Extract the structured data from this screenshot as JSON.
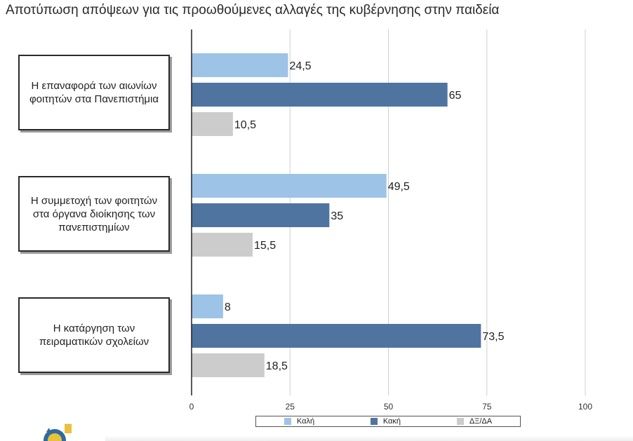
{
  "title": "Αποτύπωση απόψεων για τις προωθούμενες αλλαγές της κυβέρνησης στην παιδεία",
  "colors": {
    "kali": "#9DC3E6",
    "kaki": "#4F74A0",
    "dxda": "#CCCCCC",
    "axis": "#222222",
    "gridline": "#d0d0d0"
  },
  "logo": {
    "icon": "emblem-icon"
  },
  "chart_data": {
    "type": "bar",
    "orientation": "horizontal",
    "categories": [
      "Η επαναφορά των αιωνίων\nφοιτητών στα Πανεπιστήμια",
      "Η συμμετοχή των φοιτητών\nστα όργανα διοίκησης των\nπανεπιστημίων",
      "Η κατάργηση των\nπειραματικών σχολείων"
    ],
    "series": [
      {
        "name": "Καλή",
        "values": [
          24.5,
          49.5,
          8
        ],
        "labels": [
          "24,5",
          "49,5",
          "8"
        ]
      },
      {
        "name": "Κακή",
        "values": [
          65,
          35,
          73.5
        ],
        "labels": [
          "65",
          "35",
          "73,5"
        ]
      },
      {
        "name": "ΔΞ/ΔΑ",
        "values": [
          10.5,
          15.5,
          18.5
        ],
        "labels": [
          "10,5",
          "15,5",
          "18,5"
        ]
      }
    ],
    "xlim": [
      0,
      100
    ],
    "xticks": [
      0,
      25,
      50,
      75,
      100
    ],
    "xticklabels": [
      "0",
      "25",
      "50",
      "75",
      "100"
    ],
    "grid": true,
    "legend_position": "bottom"
  }
}
